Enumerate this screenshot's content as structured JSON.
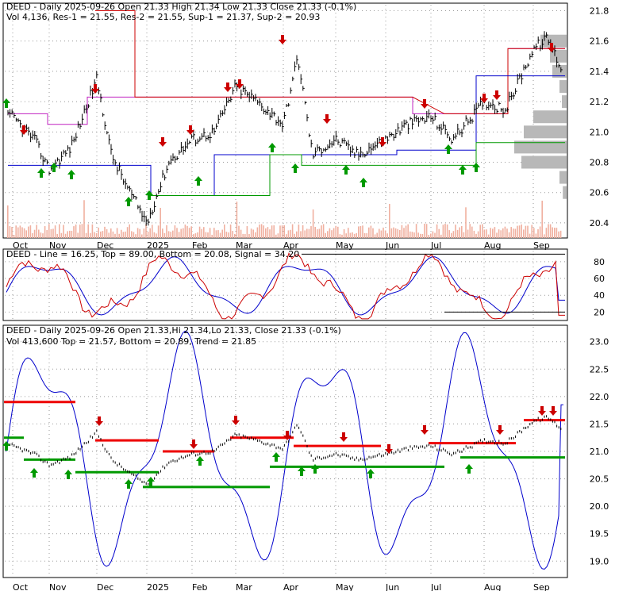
{
  "chart_data": [
    {
      "type": "line",
      "panel": "price",
      "title": "DEED - Daily 2025-09-26 Open 21.33  High 21.34  Low 21.33  Close 21.33 (-0.1%)",
      "legend": [
        {
          "text": "Vol 4,136",
          "color": "#000000"
        },
        {
          "text": "Res-1 = 21.55",
          "color": "#c020c0"
        },
        {
          "text": "Res-2 = 21.55",
          "color": "#cc0000"
        },
        {
          "text": "Sup-1 = 21.37",
          "color": "#0000cc"
        },
        {
          "text": "Sup-2 = 20.93",
          "color": "#009900"
        }
      ],
      "x_labels": [
        "Oct",
        "Nov",
        "Dec",
        "2025",
        "Feb",
        "Mar",
        "Apr",
        "May",
        "Jun",
        "Jul",
        "Aug",
        "Sep"
      ],
      "y_ticks": [
        "21.8",
        "21.6",
        "21.4",
        "21.2",
        "21.0",
        "20.8",
        "20.6",
        "20.4"
      ],
      "ylim": [
        20.3,
        21.85
      ],
      "price_anchors": [
        [
          "Oct",
          21.1
        ],
        [
          "Oct",
          20.95
        ],
        [
          "Nov",
          20.75
        ],
        [
          "Nov",
          20.9
        ],
        [
          "Dec",
          21.35
        ],
        [
          "Dec",
          20.85
        ],
        [
          "Dec",
          20.65
        ],
        [
          "2025",
          20.4
        ],
        [
          "2025",
          20.8
        ],
        [
          "Feb",
          20.95
        ],
        [
          "Feb",
          21.0
        ],
        [
          "Mar",
          21.3
        ],
        [
          "Mar",
          21.2
        ],
        [
          "Apr",
          21.05
        ],
        [
          "Apr",
          21.5
        ],
        [
          "Apr",
          20.85
        ],
        [
          "May",
          20.95
        ],
        [
          "May",
          20.85
        ],
        [
          "Jun",
          20.95
        ],
        [
          "Jun",
          21.05
        ],
        [
          "Jul",
          21.1
        ],
        [
          "Jul",
          20.95
        ],
        [
          "Aug",
          21.2
        ],
        [
          "Aug",
          21.15
        ],
        [
          "Sep",
          21.55
        ],
        [
          "Sep",
          21.62
        ],
        [
          "Sep",
          21.4
        ]
      ],
      "levels": {
        "res1": 21.55,
        "res2": 21.55,
        "sup1": 21.37,
        "sup2": 20.93
      },
      "colors": {
        "res1": "#c020c0",
        "res2": "#cc0000",
        "sup1": "#0000cc",
        "sup2": "#009900",
        "volume": "#f0b0a0",
        "up_arrow": "#009900",
        "down_arrow": "#cc0000",
        "profile": "#b8b8b8"
      }
    },
    {
      "type": "line",
      "panel": "stochastic",
      "legend": [
        {
          "text": "DEED - ",
          "color": "#000000"
        },
        {
          "text": "Line = 16.25",
          "color": "#cc0000"
        },
        {
          "text": ", Top = 89.00, Bottom = 20.08, ",
          "color": "#000000"
        },
        {
          "text": "Signal = 34.20",
          "color": "#0000cc"
        }
      ],
      "y_ticks": [
        "80",
        "60",
        "40",
        "20"
      ],
      "ylim": [
        10,
        95
      ],
      "values": {
        "line": 16.25,
        "top": 89.0,
        "bottom": 20.08,
        "signal": 34.2
      },
      "colors": {
        "line": "#cc0000",
        "signal": "#0000cc"
      }
    },
    {
      "type": "line",
      "panel": "trend",
      "title": "DEED - Daily 2025-09-26 Open 21.33,Hi 21.34,Lo 21.33, Close 21.33 (-0.1%)",
      "legend": [
        {
          "text": "Vol 413,600 ",
          "color": "#000000"
        },
        {
          "text": "Top = 21.57",
          "color": "#cc0000"
        },
        {
          "text": ", ",
          "color": "#000000"
        },
        {
          "text": "Bottom = 20.89",
          "color": "#009900"
        },
        {
          "text": ", ",
          "color": "#000000"
        },
        {
          "text": "Trend = 21.85",
          "color": "#0000cc"
        }
      ],
      "y_ticks": [
        "23.0",
        "22.5",
        "22.0",
        "21.5",
        "21.0",
        "20.5",
        "20.0",
        "19.5",
        "19.0"
      ],
      "ylim": [
        18.7,
        23.3
      ],
      "values": {
        "top": 21.57,
        "bottom": 20.89,
        "trend": 21.85
      },
      "colors": {
        "top": "#ee0000",
        "bottom": "#009900",
        "trend": "#0000cc"
      }
    }
  ]
}
